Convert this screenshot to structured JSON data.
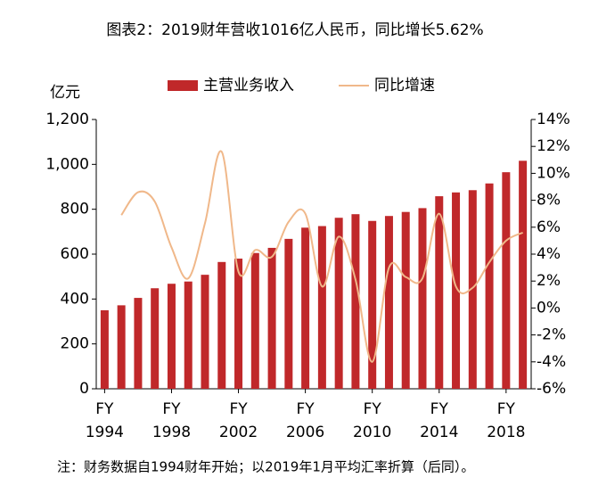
{
  "chart_data": {
    "type": "bar_line",
    "title": "图表2：2019财年营收1016亿人民币，同比增长5.62%",
    "y_label": "亿元",
    "footnote": "注：财务数据自1994财年开始；以2019年1月平均汇率折算（后同）。",
    "categories": [
      "FY 1994",
      null,
      null,
      null,
      "FY 1998",
      null,
      null,
      null,
      "FY 2002",
      null,
      null,
      null,
      "FY 2006",
      null,
      null,
      null,
      "FY 2010",
      null,
      null,
      null,
      "FY 2014",
      null,
      null,
      null,
      "FY 2018",
      null
    ],
    "series": [
      {
        "name": "主营业务收入",
        "type": "bar",
        "color": "#c0282a",
        "values": [
          350,
          372,
          405,
          448,
          468,
          478,
          508,
          565,
          580,
          605,
          628,
          668,
          718,
          725,
          762,
          778,
          748,
          770,
          788,
          805,
          858,
          875,
          885,
          915,
          965,
          1016
        ]
      },
      {
        "name": "同比增速",
        "type": "line",
        "axis": "y2",
        "color": "#f0b88a",
        "values": [
          null,
          6.9,
          8.6,
          7.9,
          4.5,
          2.2,
          6.3,
          11.6,
          2.7,
          4.3,
          3.8,
          6.4,
          7.0,
          1.6,
          5.3,
          2.1,
          -4.0,
          3.0,
          2.3,
          2.2,
          7.0,
          1.6,
          1.5,
          3.4,
          5.0,
          5.6
        ]
      }
    ],
    "ylim": [
      0,
      1200
    ],
    "yticks": [
      0,
      200,
      400,
      600,
      800,
      {
        "value": 1000,
        "label": "1,000"
      },
      {
        "value": 1200,
        "label": "1,200"
      }
    ],
    "y2lim": [
      -6,
      14
    ],
    "y2ticks": [
      {
        "value": -6,
        "label": "-6%"
      },
      {
        "value": -4,
        "label": "-4%"
      },
      {
        "value": -2,
        "label": "-2%"
      },
      {
        "value": 0,
        "label": "0%"
      },
      {
        "value": 2,
        "label": "2%"
      },
      {
        "value": 4,
        "label": "4%"
      },
      {
        "value": 6,
        "label": "6%"
      },
      {
        "value": 8,
        "label": "8%"
      },
      {
        "value": 10,
        "label": "10%"
      },
      {
        "value": 12,
        "label": "12%"
      },
      {
        "value": 14,
        "label": "14%"
      }
    ],
    "legend": "top",
    "grid": false
  }
}
